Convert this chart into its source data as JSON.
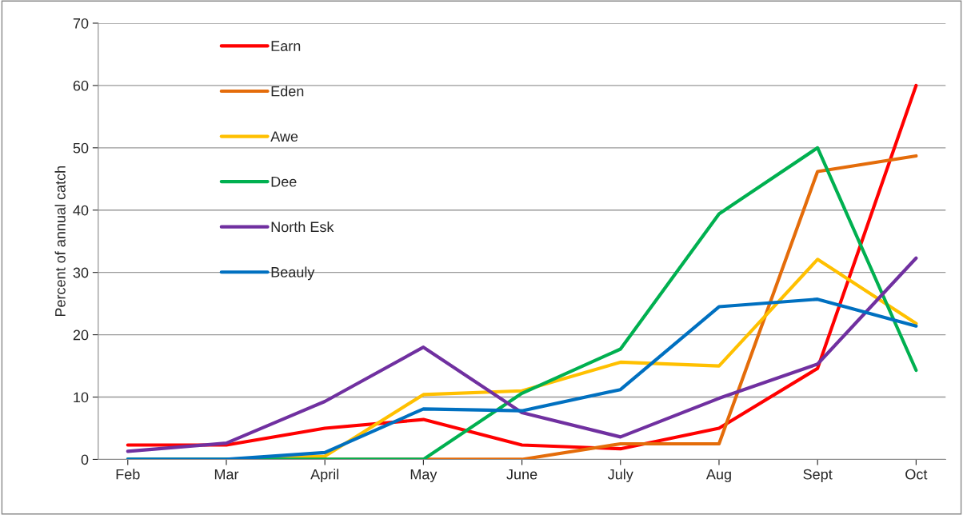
{
  "chart_data": {
    "type": "line",
    "ylabel": "Percent of annual catch",
    "categories": [
      "Feb",
      "Mar",
      "April",
      "May",
      "June",
      "July",
      "Aug",
      "Sept",
      "Oct"
    ],
    "series": [
      {
        "name": "Earn",
        "color": "#ff0000",
        "values": [
          2.3,
          2.3,
          5.0,
          6.4,
          2.3,
          1.7,
          5.0,
          14.6,
          60
        ]
      },
      {
        "name": "Eden",
        "color": "#e46c0a",
        "values": [
          null,
          null,
          0,
          0,
          0,
          2.5,
          2.5,
          46.2,
          48.7
        ]
      },
      {
        "name": "Awe",
        "color": "#ffc000",
        "values": [
          0,
          0,
          0.5,
          10.4,
          11.0,
          15.6,
          15.0,
          32.1,
          21.8
        ]
      },
      {
        "name": "Dee",
        "color": "#00b050",
        "values": [
          0,
          0,
          0,
          0,
          10.6,
          17.7,
          39.4,
          50,
          14.3
        ]
      },
      {
        "name": "North Esk",
        "color": "#7030a0",
        "values": [
          1.3,
          2.6,
          9.3,
          18.0,
          7.5,
          3.6,
          9.8,
          15.3,
          32.3
        ]
      },
      {
        "name": "Beauly",
        "color": "#0070c0",
        "values": [
          0,
          0,
          1.1,
          8.1,
          7.8,
          11.2,
          24.5,
          25.7,
          21.4
        ]
      }
    ],
    "ylim": [
      0,
      70
    ],
    "yticks": [
      0,
      10,
      20,
      30,
      40,
      50,
      60,
      70
    ],
    "grid": "y",
    "legend": "top left",
    "marker": "none",
    "line_style": "solid"
  }
}
